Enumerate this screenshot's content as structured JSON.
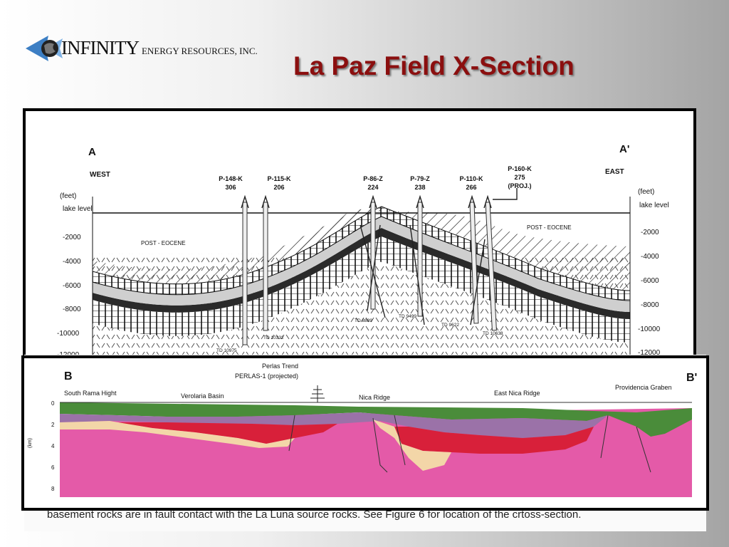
{
  "header": {
    "logo_main": "INFINITY",
    "logo_sub": "ENERGY RESOURCES, INC.",
    "title": "La Paz Field X-Section"
  },
  "section_a": {
    "start_label": "A",
    "end_label": "A'",
    "west_label": "WEST",
    "east_label": "EAST",
    "left_axis_unit": "(feet)",
    "right_axis_unit": "(feet)",
    "lake_level": "lake level",
    "left_ticks": [
      "-2000",
      "-4000",
      "-6000",
      "-8000",
      "-10000",
      "-12000"
    ],
    "right_ticks": [
      "-2000",
      "-4000",
      "-6000",
      "-8000",
      "-10000",
      "-12000"
    ],
    "post_eocene_west": "POST - EOCENE",
    "post_eocene_east": "POST - EOCENE",
    "wells": [
      {
        "name": "P-148-K",
        "elev": "306"
      },
      {
        "name": "P-115-K",
        "elev": "206"
      },
      {
        "name": "P-86-Z",
        "elev": "224"
      },
      {
        "name": "P-79-Z",
        "elev": "238"
      },
      {
        "name": "P-110-K",
        "elev": "266"
      },
      {
        "name": "P-160-K",
        "elev": "275",
        "note": "(PROJ.)"
      }
    ],
    "td_labels": [
      "TD 10975",
      "TD 10332",
      "TD 8889",
      "TD 9499",
      "TD 9622",
      "TD 10638"
    ]
  },
  "section_b": {
    "start_label": "B",
    "end_label": "B'",
    "trend_label": "Perlas Trend",
    "well_label": "PERLAS-1 (projected)",
    "locations": [
      "South Rama Hight",
      "Verolaria Basin",
      "Nica Ridge",
      "East Nica Ridge",
      "Providencia Graben"
    ],
    "axis_unit": "(km)",
    "depth_ticks": [
      "0",
      "2",
      "4",
      "6",
      "8"
    ]
  },
  "caption": {
    "line1": "basement rocks are in fault contact with the La Luna source rocks.  See Figure 6 for location of the crtoss-section."
  },
  "colors": {
    "title": "#8b0f0f",
    "green_layer": "#4a8c3a",
    "purple_layer": "#9b72a8",
    "red_layer": "#d8203a",
    "cream_layer": "#f3d6a8",
    "pink_basement": "#e45aa8"
  }
}
